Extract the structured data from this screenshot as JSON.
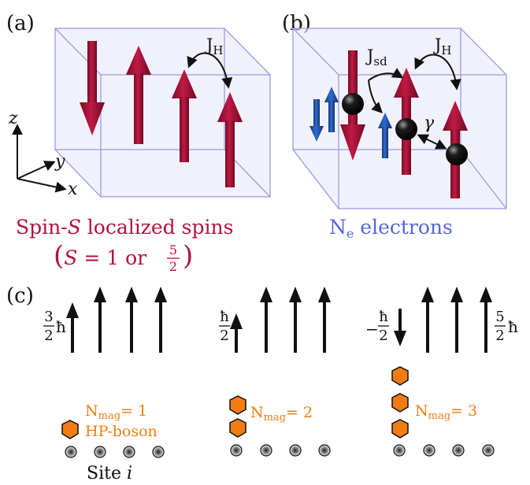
{
  "panels": {
    "a": {
      "label": "(a)",
      "coupling": "J",
      "coupling_sub": "H"
    },
    "b": {
      "label": "(b)",
      "coupling_sd": "J",
      "coupling_sd_sub": "sd",
      "coupling_h": "J",
      "coupling_h_sub": "H",
      "gamma": "γ"
    },
    "c": {
      "label": "(c)"
    }
  },
  "axes": {
    "z": "z",
    "y": "y",
    "x": "x"
  },
  "captions": {
    "localized_1": "Spin-",
    "localized_S": "S",
    "localized_2": " localized spins",
    "localized_paren_open": "(",
    "localized_S2": "S",
    "localized_eq": " = 1 or ",
    "localized_frac_num": "5",
    "localized_frac_den": "2",
    "localized_paren_close": ")",
    "electrons_N": "N",
    "electrons_sub": "e",
    "electrons_rest": " electrons"
  },
  "groups": [
    {
      "frac_num": "3",
      "frac_den": "2",
      "frac_suffix": "ħ",
      "nmag_prefix": "N",
      "nmag_sub": "mag",
      "nmag_value": "= 1",
      "boson_label": "HP-boson",
      "nmag": 1
    },
    {
      "frac_num": "ħ",
      "frac_den": "2",
      "frac_suffix": "",
      "nmag_prefix": "N",
      "nmag_sub": "mag",
      "nmag_value": "= 2",
      "nmag": 2
    },
    {
      "frac_sign": "−",
      "frac_num": "ħ",
      "frac_den": "2",
      "frac_suffix": "",
      "nmag_prefix": "N",
      "nmag_sub": "mag",
      "nmag_value": "= 3",
      "nmag": 3
    }
  ],
  "right_label": {
    "frac_num": "5",
    "frac_den": "2",
    "frac_suffix": "ħ"
  },
  "site_label": {
    "text": "Site ",
    "index": "i"
  },
  "colors": {
    "spin_red": "#b3123a",
    "electron_blue": "#1f4fb0",
    "boson_orange": "#f07c12",
    "box_blue": "#9a9ae6"
  }
}
